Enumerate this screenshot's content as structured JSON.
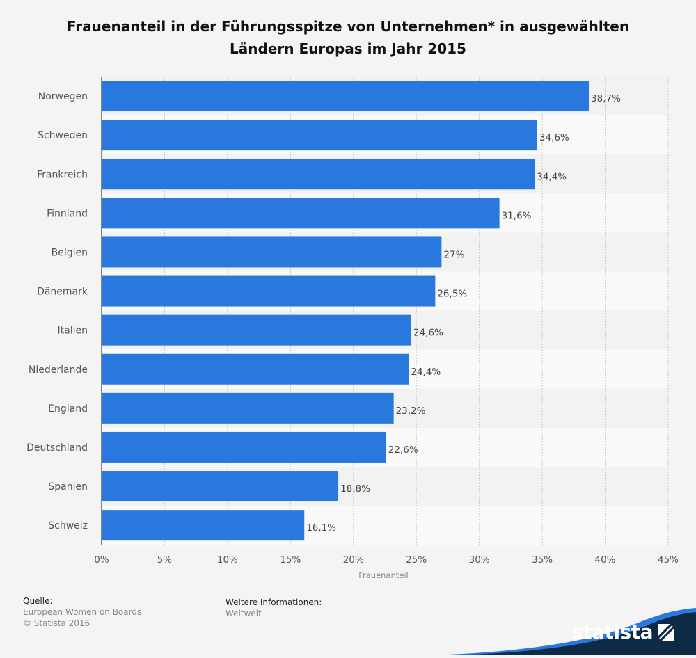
{
  "title": {
    "line1": "Frauenanteil in der Führungsspitze von Unternehmen* in ausgewählten",
    "line2": "Ländern Europas im Jahr 2015"
  },
  "chart_data": {
    "type": "bar",
    "orientation": "horizontal",
    "title": "Frauenanteil in der Führungsspitze von Unternehmen* in ausgewählten Ländern Europas im Jahr 2015",
    "xlabel": "Frauenanteil",
    "ylabel": "",
    "xlim": [
      0,
      45
    ],
    "ticks": [
      0,
      5,
      10,
      15,
      20,
      25,
      30,
      35,
      40,
      45
    ],
    "tick_labels": [
      "0%",
      "5%",
      "10%",
      "15%",
      "20%",
      "25%",
      "30%",
      "35%",
      "40%",
      "45%"
    ],
    "categories": [
      "Norwegen",
      "Schweden",
      "Frankreich",
      "Finnland",
      "Belgien",
      "Dänemark",
      "Italien",
      "Niederlande",
      "England",
      "Deutschland",
      "Spanien",
      "Schweiz"
    ],
    "values": [
      38.7,
      34.6,
      34.4,
      31.6,
      27,
      26.5,
      24.6,
      24.4,
      23.2,
      22.6,
      18.8,
      16.1
    ],
    "value_labels": [
      "38,7%",
      "34,6%",
      "34,4%",
      "31,6%",
      "27%",
      "26,5%",
      "24,6%",
      "24,4%",
      "23,2%",
      "22,6%",
      "18,8%",
      "16,1%"
    ],
    "bar_color": "#2878dd",
    "grid": true,
    "legend": "none"
  },
  "footer": {
    "source_heading": "Quelle:",
    "source_lines": [
      "European Women on Boards",
      "© Statista 2016"
    ],
    "info_heading": "Weitere Informationen:",
    "info_text": "Weltweit"
  },
  "brand": {
    "name": "statista",
    "icon": "statista-logo-icon",
    "color": "#0f2a45",
    "accent": "#2878dd"
  }
}
